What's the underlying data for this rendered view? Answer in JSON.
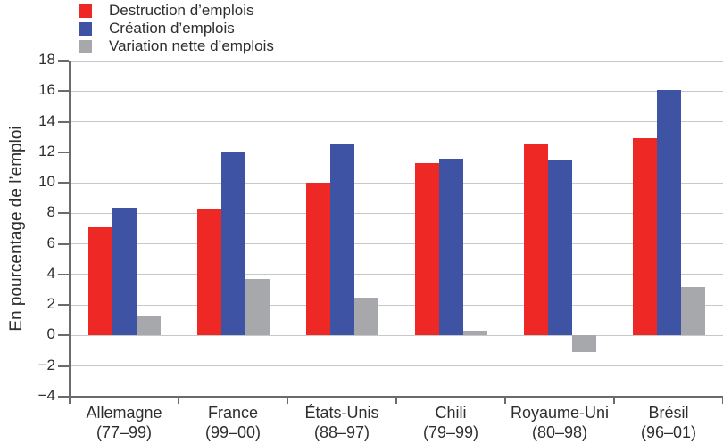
{
  "chart_data": {
    "type": "bar",
    "title": "",
    "ylabel": "En pourcentage de l’emploi",
    "xlabel": "",
    "ylim": [
      -4,
      18
    ],
    "yticks": [
      18,
      16,
      14,
      12,
      10,
      8,
      6,
      4,
      2,
      0,
      -2,
      -4
    ],
    "grid": true,
    "legend_position": "top-left",
    "categories": [
      {
        "name": "Allemagne",
        "period": "(77–99)"
      },
      {
        "name": "France",
        "period": "(99–00)"
      },
      {
        "name": "États-Unis",
        "period": "(88–97)"
      },
      {
        "name": "Chili",
        "period": "(79–99)"
      },
      {
        "name": "Royaume-Uni",
        "period": "(80–98)"
      },
      {
        "name": "Brésil",
        "period": "(96–01)"
      }
    ],
    "series": [
      {
        "name": "Destruction d’emplois",
        "color": "#ee2824",
        "values": [
          7.1,
          8.3,
          10.0,
          11.3,
          12.6,
          12.9
        ]
      },
      {
        "name": "Création d’emplois",
        "color": "#3e53a4",
        "values": [
          8.4,
          12.0,
          12.5,
          11.6,
          11.5,
          16.1
        ]
      },
      {
        "name": "Variation nette d’emplois",
        "color": "#a6a8ab",
        "values": [
          1.3,
          3.7,
          2.5,
          0.3,
          -1.1,
          3.2
        ]
      }
    ]
  },
  "colors": {
    "grid": "#c7c8ca",
    "axis": "#6a6b6e",
    "text": "#2e2e31",
    "background": "#ffffff"
  }
}
